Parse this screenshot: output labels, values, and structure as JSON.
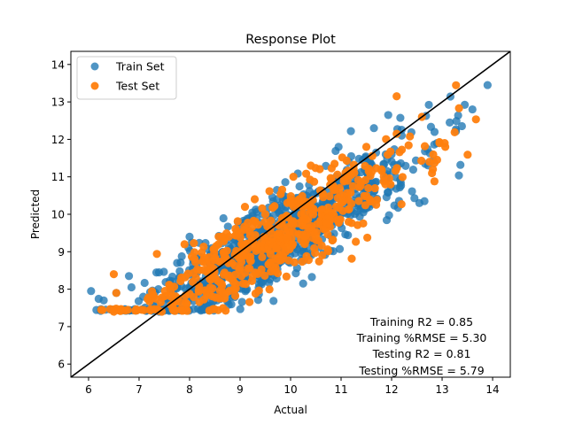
{
  "chart_data": {
    "type": "scatter",
    "title": "Response Plot",
    "xlabel": "Actual",
    "ylabel": "Predicted",
    "xlim": [
      5.65,
      14.35
    ],
    "ylim": [
      5.65,
      14.35
    ],
    "xticks": [
      "6",
      "7",
      "8",
      "9",
      "10",
      "11",
      "12",
      "13",
      "14"
    ],
    "yticks": [
      "6",
      "7",
      "8",
      "9",
      "10",
      "11",
      "12",
      "13",
      "14"
    ],
    "legend_position": "top-left",
    "reference_line": {
      "x": [
        5.65,
        14.35
      ],
      "y": [
        5.65,
        14.35
      ],
      "color": "#000000"
    },
    "series": [
      {
        "name": "Train Set",
        "color": "#1f77b4",
        "seed": 7,
        "count": 900,
        "points": [
          [
            6.05,
            7.95
          ],
          [
            6.3,
            7.7
          ],
          [
            6.55,
            7.9
          ],
          [
            6.85,
            8.05
          ],
          [
            6.8,
            8.35
          ],
          [
            13.9,
            13.45
          ],
          [
            13.6,
            12.8
          ],
          [
            13.15,
            12.45
          ],
          [
            12.85,
            12.2
          ],
          [
            12.9,
            11.9
          ],
          [
            11.65,
            12.3
          ],
          [
            10.95,
            11.8
          ],
          [
            11.2,
            11.55
          ],
          [
            9.3,
            9.0
          ],
          [
            9.6,
            8.6
          ],
          [
            10.4,
            8.95
          ],
          [
            12.65,
            10.35
          ],
          [
            12.55,
            10.3
          ],
          [
            7.4,
            7.4
          ],
          [
            7.5,
            7.45
          ],
          [
            8.0,
            9.4
          ],
          [
            9.45,
            10.0
          ],
          [
            10.6,
            10.2
          ],
          [
            12.0,
            11.6
          ],
          [
            12.2,
            12.1
          ]
        ]
      },
      {
        "name": "Test Set",
        "color": "#ff7f0e",
        "seed": 13,
        "count": 520,
        "points": [
          [
            6.25,
            7.45
          ],
          [
            6.5,
            8.4
          ],
          [
            6.55,
            7.9
          ],
          [
            7.05,
            7.45
          ],
          [
            7.45,
            7.4
          ],
          [
            12.1,
            13.15
          ],
          [
            12.6,
            12.6
          ],
          [
            12.75,
            11.4
          ],
          [
            12.95,
            11.9
          ],
          [
            13.05,
            11.9
          ],
          [
            11.8,
            11.2
          ],
          [
            11.15,
            9.8
          ],
          [
            11.5,
            11.8
          ],
          [
            12.1,
            12.15
          ],
          [
            8.9,
            8.0
          ],
          [
            7.9,
            9.2
          ],
          [
            9.5,
            10.0
          ],
          [
            12.8,
            11.1
          ],
          [
            10.4,
            11.3
          ],
          [
            6.5,
            7.4
          ]
        ]
      }
    ],
    "annotations": [
      "Training R2 = 0.85",
      "Training %RMSE = 5.30",
      "Testing R2 = 0.81",
      "Testing %RMSE = 5.79"
    ]
  }
}
